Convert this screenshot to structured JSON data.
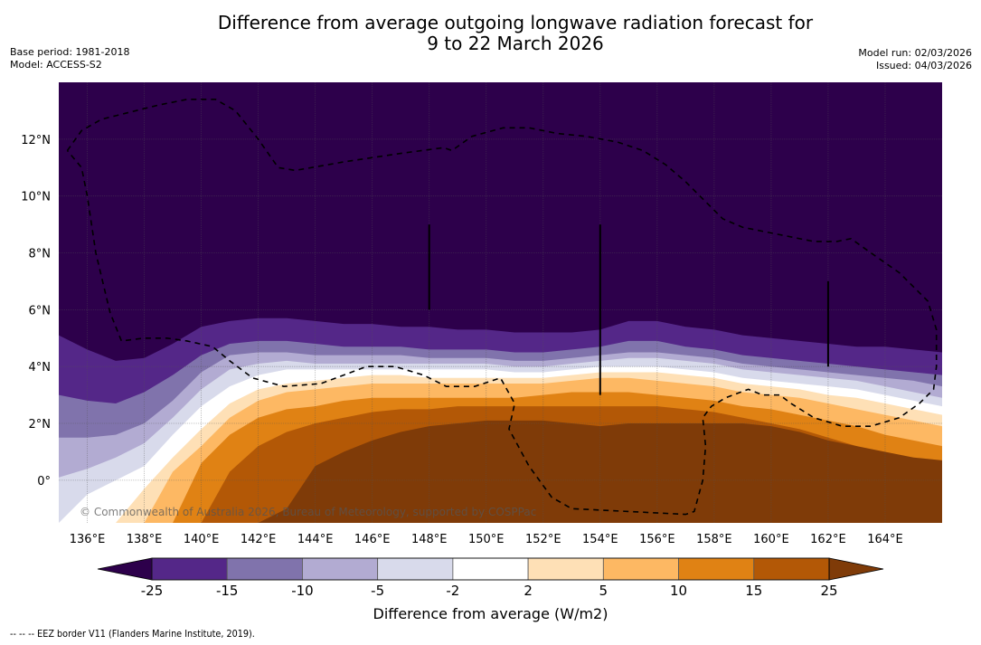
{
  "header": {
    "title_line1": "Difference from average outgoing longwave radiation forecast for",
    "title_line2": "9 to 22 March 2026",
    "base_period": "Base period: 1981-2018",
    "model": "Model: ACCESS-S2",
    "model_run": "Model run: 02/03/2026",
    "issued": "Issued: 04/03/2026"
  },
  "footer": {
    "copyright": "© Commonwealth of Australia 2026, Bureau of Meteorology, supported by COSPPac",
    "eez_note": "--  --  -- EEZ border V11 (Flanders Marine Institute, 2019)."
  },
  "chart_data": {
    "type": "heatmap",
    "title": "Difference from average outgoing longwave radiation forecast for 9 to 22 March 2026",
    "extent": {
      "lon": [
        135,
        166
      ],
      "lat": [
        -1.5,
        14
      ]
    },
    "x_ticks": [
      {
        "value": 136,
        "label": "136°E"
      },
      {
        "value": 138,
        "label": "138°E"
      },
      {
        "value": 140,
        "label": "140°E"
      },
      {
        "value": 142,
        "label": "142°E"
      },
      {
        "value": 144,
        "label": "144°E"
      },
      {
        "value": 146,
        "label": "146°E"
      },
      {
        "value": 148,
        "label": "148°E"
      },
      {
        "value": 150,
        "label": "150°E"
      },
      {
        "value": 152,
        "label": "152°E"
      },
      {
        "value": 154,
        "label": "154°E"
      },
      {
        "value": 156,
        "label": "156°E"
      },
      {
        "value": 158,
        "label": "158°E"
      },
      {
        "value": 160,
        "label": "160°E"
      },
      {
        "value": 162,
        "label": "162°E"
      },
      {
        "value": 164,
        "label": "164°E"
      }
    ],
    "y_ticks": [
      {
        "value": 0,
        "label": "0°"
      },
      {
        "value": 2,
        "label": "2°N"
      },
      {
        "value": 4,
        "label": "4°N"
      },
      {
        "value": 6,
        "label": "6°N"
      },
      {
        "value": 8,
        "label": "8°N"
      },
      {
        "value": 10,
        "label": "10°N"
      },
      {
        "value": 12,
        "label": "12°N"
      }
    ],
    "grid": true,
    "colorbar": {
      "label": "Difference from average (W/m2)",
      "levels": [
        -25,
        -15,
        -10,
        -5,
        -2,
        2,
        5,
        10,
        15,
        25
      ],
      "tick_labels": [
        "-25",
        "-15",
        "-10",
        "-5",
        "-2",
        "2",
        "5",
        "10",
        "15",
        "25"
      ],
      "colors": [
        "#2d004b",
        "#542788",
        "#8073ac",
        "#b2abd2",
        "#d8daeb",
        "#ffffff",
        "#fee0b6",
        "#fdb863",
        "#e08214",
        "#b35806",
        "#7f3b08"
      ],
      "extend": "both",
      "placement": "bottom"
    },
    "bands_note": "Contour boundaries listed as latitude at each sample longitude, from the most negative (north) to most positive (south).",
    "sample_lons": [
      135,
      136,
      137,
      138,
      139,
      140,
      141,
      142,
      143,
      144,
      145,
      146,
      147,
      148,
      149,
      150,
      151,
      152,
      153,
      154,
      155,
      156,
      157,
      158,
      159,
      160,
      161,
      162,
      163,
      164,
      165,
      166
    ],
    "boundaries": [
      {
        "level": -25,
        "lats": [
          5.1,
          4.6,
          4.2,
          4.3,
          4.8,
          5.4,
          5.6,
          5.7,
          5.7,
          5.6,
          5.5,
          5.5,
          5.4,
          5.4,
          5.3,
          5.3,
          5.2,
          5.2,
          5.2,
          5.3,
          5.6,
          5.6,
          5.4,
          5.3,
          5.1,
          5.0,
          4.9,
          4.8,
          4.7,
          4.7,
          4.6,
          4.5
        ]
      },
      {
        "level": -15,
        "lats": [
          3.0,
          2.8,
          2.7,
          3.1,
          3.7,
          4.4,
          4.8,
          4.9,
          4.9,
          4.8,
          4.7,
          4.7,
          4.7,
          4.6,
          4.6,
          4.6,
          4.5,
          4.5,
          4.6,
          4.7,
          4.9,
          4.9,
          4.7,
          4.6,
          4.4,
          4.3,
          4.2,
          4.1,
          4.0,
          3.9,
          3.8,
          3.7
        ]
      },
      {
        "level": -10,
        "lats": [
          1.5,
          1.5,
          1.6,
          2.0,
          2.8,
          3.8,
          4.4,
          4.5,
          4.5,
          4.4,
          4.4,
          4.4,
          4.4,
          4.3,
          4.3,
          4.3,
          4.2,
          4.2,
          4.3,
          4.4,
          4.5,
          4.5,
          4.4,
          4.3,
          4.1,
          4.0,
          3.9,
          3.8,
          3.7,
          3.6,
          3.5,
          3.3
        ]
      },
      {
        "level": -5,
        "lats": [
          0.1,
          0.4,
          0.8,
          1.3,
          2.2,
          3.2,
          3.9,
          4.1,
          4.2,
          4.1,
          4.1,
          4.1,
          4.1,
          4.1,
          4.1,
          4.1,
          4.0,
          4.0,
          4.1,
          4.2,
          4.3,
          4.3,
          4.2,
          4.1,
          3.9,
          3.8,
          3.7,
          3.6,
          3.5,
          3.3,
          3.1,
          2.9
        ]
      },
      {
        "level": -2,
        "lats": [
          -1.5,
          -0.5,
          0.0,
          0.5,
          1.6,
          2.6,
          3.3,
          3.7,
          3.9,
          3.9,
          3.9,
          3.9,
          3.9,
          3.9,
          3.9,
          3.9,
          3.8,
          3.8,
          3.9,
          4.0,
          4.0,
          4.0,
          3.9,
          3.8,
          3.6,
          3.5,
          3.4,
          3.3,
          3.2,
          3.0,
          2.8,
          2.6
        ]
      },
      {
        "level": 2,
        "lats": [
          -1.5,
          -1.5,
          -1.5,
          -0.3,
          0.8,
          1.8,
          2.7,
          3.2,
          3.4,
          3.5,
          3.6,
          3.7,
          3.7,
          3.6,
          3.6,
          3.6,
          3.6,
          3.6,
          3.7,
          3.8,
          3.8,
          3.8,
          3.7,
          3.6,
          3.4,
          3.3,
          3.2,
          3.0,
          2.9,
          2.7,
          2.5,
          2.3
        ]
      },
      {
        "level": 5,
        "lats": [
          -1.5,
          -1.5,
          -1.5,
          -1.5,
          0.3,
          1.2,
          2.2,
          2.8,
          3.1,
          3.2,
          3.3,
          3.4,
          3.4,
          3.4,
          3.4,
          3.4,
          3.4,
          3.4,
          3.5,
          3.6,
          3.6,
          3.5,
          3.4,
          3.3,
          3.1,
          3.0,
          2.9,
          2.7,
          2.5,
          2.3,
          2.1,
          1.9
        ]
      },
      {
        "level": 10,
        "lats": [
          -1.5,
          -1.5,
          -1.5,
          -1.5,
          -1.5,
          0.6,
          1.6,
          2.2,
          2.5,
          2.6,
          2.8,
          2.9,
          2.9,
          2.9,
          2.9,
          2.9,
          2.9,
          3.0,
          3.1,
          3.1,
          3.1,
          3.0,
          2.9,
          2.8,
          2.6,
          2.5,
          2.3,
          2.1,
          1.9,
          1.6,
          1.4,
          1.2
        ]
      },
      {
        "level": 15,
        "lats": [
          -1.5,
          -1.5,
          -1.5,
          -1.5,
          -1.5,
          -1.5,
          0.3,
          1.2,
          1.7,
          2.0,
          2.2,
          2.4,
          2.5,
          2.5,
          2.6,
          2.6,
          2.6,
          2.6,
          2.6,
          2.6,
          2.6,
          2.6,
          2.5,
          2.4,
          2.2,
          2.0,
          1.8,
          1.5,
          1.2,
          0.9,
          0.7,
          0.6
        ]
      },
      {
        "level": 25,
        "lats": [
          -1.5,
          -1.5,
          -1.5,
          -1.5,
          -1.5,
          -1.5,
          -1.5,
          -1.5,
          -1.0,
          0.5,
          1.0,
          1.4,
          1.7,
          1.9,
          2.0,
          2.1,
          2.1,
          2.1,
          2.0,
          1.9,
          2.0,
          2.0,
          2.0,
          2.0,
          2.0,
          1.9,
          1.7,
          1.4,
          1.2,
          1.0,
          0.8,
          0.7
        ]
      }
    ],
    "eez_borders": [
      {
        "name": "eez-border-palau-fsm-north",
        "points": [
          [
            135.3,
            11.6
          ],
          [
            135.8,
            12.3
          ],
          [
            136.5,
            12.7
          ],
          [
            137.3,
            12.9
          ],
          [
            138.5,
            13.2
          ],
          [
            139.5,
            13.4
          ],
          [
            140.5,
            13.4
          ],
          [
            141.2,
            13.0
          ],
          [
            142.0,
            12.0
          ],
          [
            142.7,
            11.0
          ],
          [
            143.3,
            10.9
          ],
          [
            145.0,
            11.2
          ],
          [
            147.0,
            11.5
          ],
          [
            148.5,
            11.7
          ],
          [
            148.8,
            11.6
          ],
          [
            149.5,
            12.1
          ],
          [
            150.6,
            12.4
          ],
          [
            151.5,
            12.4
          ],
          [
            152.5,
            12.2
          ],
          [
            153.5,
            12.1
          ],
          [
            154.6,
            11.9
          ],
          [
            155.5,
            11.6
          ],
          [
            156.3,
            11.1
          ],
          [
            157.0,
            10.5
          ],
          [
            157.8,
            9.7
          ],
          [
            158.3,
            9.2
          ],
          [
            159.0,
            8.9
          ],
          [
            160.5,
            8.6
          ],
          [
            161.5,
            8.4
          ],
          [
            162.3,
            8.4
          ],
          [
            162.8,
            8.5
          ],
          [
            163.5,
            8.0
          ],
          [
            164.5,
            7.3
          ],
          [
            165.5,
            6.3
          ],
          [
            165.8,
            5.3
          ],
          [
            165.8,
            4.0
          ],
          [
            165.7,
            3.2
          ],
          [
            165.2,
            2.7
          ],
          [
            164.5,
            2.2
          ],
          [
            163.5,
            1.9
          ],
          [
            162.5,
            1.9
          ],
          [
            161.5,
            2.2
          ],
          [
            160.7,
            2.7
          ],
          [
            160.3,
            3.0
          ],
          [
            159.7,
            3.0
          ],
          [
            159.2,
            3.2
          ],
          [
            158.4,
            2.9
          ],
          [
            157.9,
            2.6
          ],
          [
            157.6,
            2.2
          ],
          [
            157.7,
            1.2
          ],
          [
            157.6,
            0.0
          ],
          [
            157.3,
            -1.1
          ],
          [
            157.0,
            -1.2
          ],
          [
            155.0,
            -1.1
          ],
          [
            153.0,
            -1.0
          ],
          [
            152.3,
            -0.6
          ],
          [
            151.5,
            0.5
          ],
          [
            150.8,
            1.8
          ],
          [
            151.0,
            2.7
          ],
          [
            150.5,
            3.6
          ],
          [
            149.6,
            3.3
          ],
          [
            148.6,
            3.3
          ],
          [
            147.8,
            3.7
          ],
          [
            146.8,
            4.0
          ],
          [
            145.8,
            4.0
          ],
          [
            145.0,
            3.7
          ],
          [
            144.2,
            3.4
          ],
          [
            142.9,
            3.3
          ],
          [
            141.8,
            3.6
          ],
          [
            141.0,
            4.2
          ],
          [
            140.4,
            4.7
          ],
          [
            139.5,
            4.9
          ],
          [
            138.8,
            5.0
          ],
          [
            138.0,
            5.0
          ],
          [
            137.2,
            4.9
          ],
          [
            136.8,
            5.9
          ],
          [
            136.3,
            8.0
          ],
          [
            136.0,
            10.0
          ],
          [
            135.8,
            11.0
          ],
          [
            135.3,
            11.6
          ]
        ]
      }
    ],
    "meridian_lines": [
      {
        "lon": 148.0,
        "lat_from": 6.0,
        "lat_to": 9.0
      },
      {
        "lon": 154.0,
        "lat_from": 3.0,
        "lat_to": 9.0
      },
      {
        "lon": 162.0,
        "lat_from": 4.0,
        "lat_to": 7.0
      }
    ]
  }
}
